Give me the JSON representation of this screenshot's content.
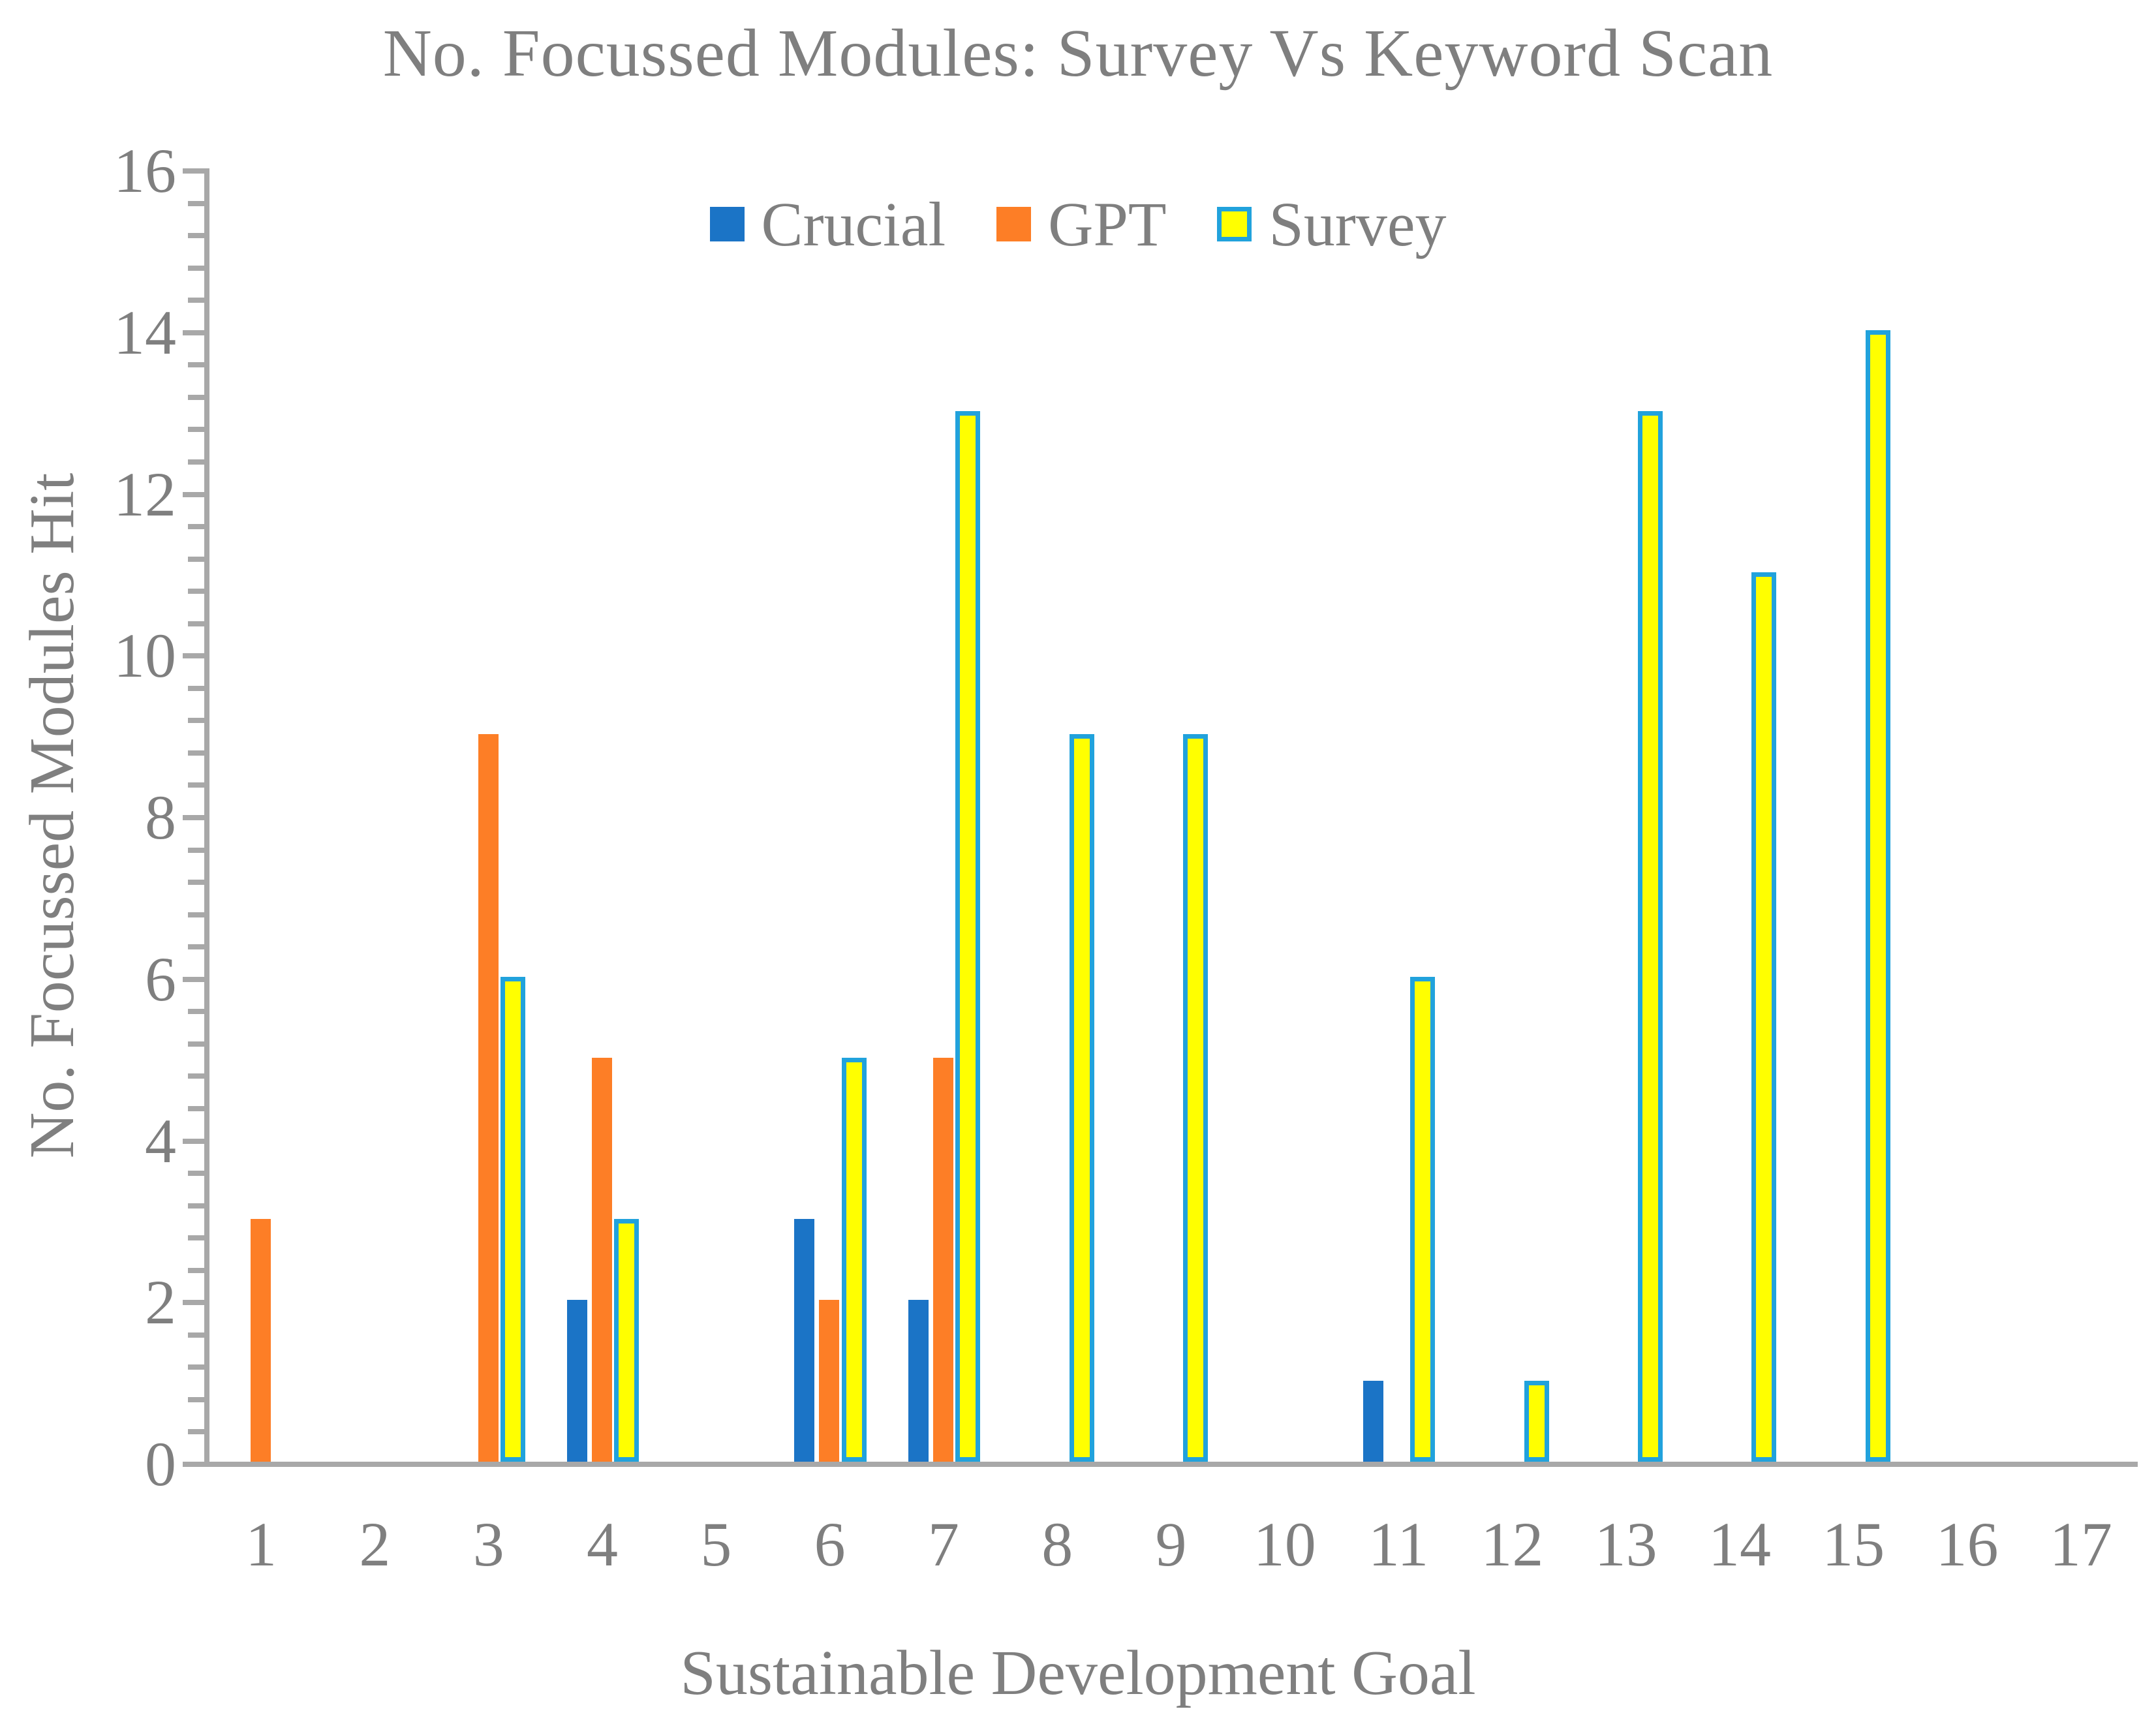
{
  "title": "No. Focussed Modules: Survey Vs Keyword Scan",
  "x_axis_title": "Sustainable Development Goal",
  "y_axis_title": "No. Focussed Modules Hit",
  "legend": {
    "items": [
      {
        "label": "Crucial",
        "color": "#1b74c6",
        "border": "#1b74c6"
      },
      {
        "label": "GPT",
        "color": "#fd7e26",
        "border": "#fd7e26"
      },
      {
        "label": "Survey",
        "color": "#ffff00",
        "border": "#21a2dc"
      }
    ]
  },
  "colors": {
    "axis_line": "#a8a8a8",
    "text": "#7f7f7f",
    "crucial": "#1b74c6",
    "gpt": "#fd7e26",
    "survey_fill": "#ffff00",
    "survey_border": "#21a2dc",
    "background": "#ffffff"
  },
  "chart_data": {
    "type": "bar",
    "title": "No. Focussed Modules: Survey Vs Keyword Scan",
    "xlabel": "Sustainable Development Goal",
    "ylabel": "No. Focussed Modules Hit",
    "categories": [
      "1",
      "2",
      "3",
      "4",
      "5",
      "6",
      "7",
      "8",
      "9",
      "10",
      "11",
      "12",
      "13",
      "14",
      "15",
      "16",
      "17"
    ],
    "series": [
      {
        "name": "Crucial",
        "color": "#1b74c6",
        "values": [
          0,
          0,
          0,
          2,
          0,
          3,
          2,
          0,
          0,
          0,
          1,
          0,
          0,
          0,
          0,
          0,
          0
        ]
      },
      {
        "name": "GPT",
        "color": "#fd7e26",
        "values": [
          3,
          0,
          9,
          5,
          0,
          2,
          5,
          0,
          0,
          0,
          0,
          0,
          0,
          0,
          0,
          0,
          0
        ]
      },
      {
        "name": "Survey",
        "color": "#ffff00",
        "border_color": "#21a2dc",
        "values": [
          0,
          0,
          6,
          3,
          0,
          5,
          13,
          9,
          9,
          0,
          6,
          1,
          13,
          11,
          14,
          0,
          0
        ]
      }
    ],
    "ylim": [
      0,
      16
    ],
    "y_major_unit": 2,
    "y_minor_unit": 0.4,
    "y_major_ticks": [
      0,
      2,
      4,
      6,
      8,
      10,
      12,
      14,
      16
    ],
    "grid": false,
    "legend_position": "top-inside"
  }
}
